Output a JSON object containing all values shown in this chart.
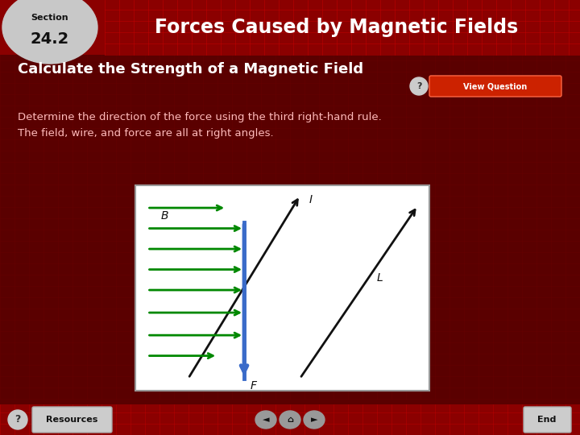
{
  "bg_color": "#5a0000",
  "header_bg": "#8b0000",
  "header_title": "Forces Caused by Magnetic Fields",
  "section_label": "Section",
  "section_number": "24.2",
  "slide_title": "Calculate the Strength of a Magnetic Field",
  "body_text_line1": "Determine the direction of the force using the third right-hand rule.",
  "body_text_line2": "The field, wire, and force are all at right angles.",
  "diagram_bg": "#ffffff",
  "arrow_color": "#008800",
  "wire_color": "#3a6bc9",
  "line_color": "#111111",
  "text_color_header": "#ffffff",
  "text_color_body": "#ffbbbb",
  "text_color_slide_title": "#ffffff",
  "view_question_text": "View Question",
  "footer_buttons": [
    "Resources",
    "End"
  ],
  "nav_symbols": [
    "◄",
    "⌂",
    "►"
  ],
  "grid_color": "#cc0000"
}
